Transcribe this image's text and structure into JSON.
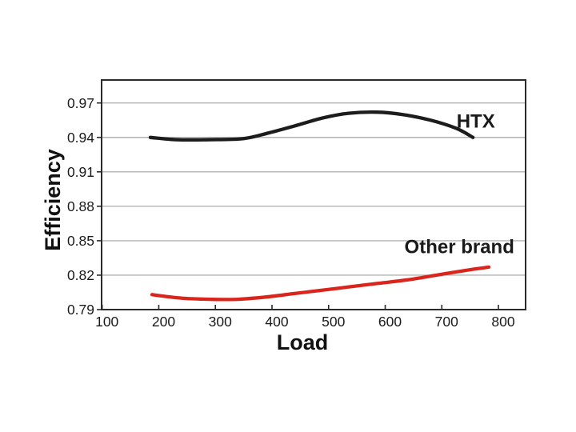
{
  "chart_data": {
    "type": "line",
    "title": "",
    "xlabel": "Load",
    "ylabel": "Efficiency",
    "xlim": [
      99,
      848
    ],
    "ylim": [
      0.79,
      0.99
    ],
    "x_ticks": [
      100,
      200,
      300,
      400,
      500,
      600,
      700,
      800
    ],
    "y_ticks": [
      0.79,
      0.82,
      0.85,
      0.88,
      0.91,
      0.94,
      0.97
    ],
    "grid": "horizontal",
    "legend_position": "inline-labels",
    "series": [
      {
        "name": "HTX",
        "color": "#1c1c1c",
        "x": [
          185,
          230,
          290,
          350,
          395,
          440,
          490,
          535,
          585,
          630,
          680,
          725,
          755
        ],
        "y": [
          0.94,
          0.938,
          0.938,
          0.939,
          0.944,
          0.95,
          0.957,
          0.961,
          0.962,
          0.96,
          0.955,
          0.948,
          0.94
        ]
      },
      {
        "name": "Other brand",
        "color": "#da251d",
        "x": [
          188,
          240,
          290,
          340,
          390,
          440,
          490,
          540,
          590,
          640,
          690,
          740,
          783
        ],
        "y": [
          0.803,
          0.8,
          0.799,
          0.799,
          0.801,
          0.804,
          0.807,
          0.81,
          0.813,
          0.816,
          0.82,
          0.824,
          0.827
        ]
      }
    ],
    "annotations": [
      {
        "text": "HTX",
        "x": 760,
        "y": 0.9545,
        "color": "#1a1a1a"
      },
      {
        "text": "Other brand",
        "x": 731,
        "y": 0.845,
        "color": "#1a1a1a"
      }
    ]
  },
  "colors": {
    "background": "#ffffff",
    "axis": "#2b2b2b",
    "grid": "#b3b3b3",
    "tick": "#2b2b2b",
    "text": "#1a1a1a"
  }
}
